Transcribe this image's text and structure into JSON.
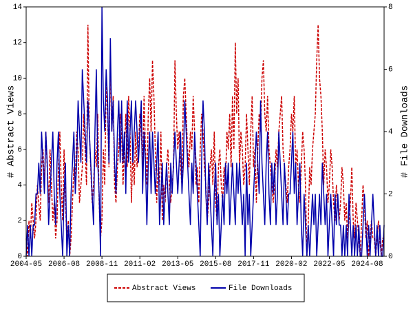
{
  "chart_data": {
    "type": "line",
    "x": [
      "2004-05",
      "2004-06",
      "2004-07",
      "2004-08",
      "2004-09",
      "2004-10",
      "2004-11",
      "2004-12",
      "2005-01",
      "2005-02",
      "2005-03",
      "2005-04",
      "2005-05",
      "2005-06",
      "2005-07",
      "2005-08",
      "2005-09",
      "2005-10",
      "2005-11",
      "2005-12",
      "2006-01",
      "2006-02",
      "2006-03",
      "2006-04",
      "2006-05",
      "2006-06",
      "2006-07",
      "2006-08",
      "2006-09",
      "2006-10",
      "2006-11",
      "2006-12",
      "2007-01",
      "2007-02",
      "2007-03",
      "2007-04",
      "2007-05",
      "2007-06",
      "2007-07",
      "2007-08",
      "2007-09",
      "2007-10",
      "2007-11",
      "2007-12",
      "2008-01",
      "2008-02",
      "2008-03",
      "2008-04",
      "2008-05",
      "2008-06",
      "2008-07",
      "2008-08",
      "2008-09",
      "2008-10",
      "2008-11",
      "2008-12",
      "2009-01",
      "2009-02",
      "2009-03",
      "2009-04",
      "2009-05",
      "2009-06",
      "2009-07",
      "2009-08",
      "2009-09",
      "2009-10",
      "2009-11",
      "2009-12",
      "2010-01",
      "2010-02",
      "2010-03",
      "2010-04",
      "2010-05",
      "2010-06",
      "2010-07",
      "2010-08",
      "2010-09",
      "2010-10",
      "2010-11",
      "2010-12",
      "2011-01",
      "2011-02",
      "2011-03",
      "2011-04",
      "2011-05",
      "2011-06",
      "2011-07",
      "2011-08",
      "2011-09",
      "2011-10",
      "2011-11",
      "2011-12",
      "2012-01",
      "2012-02",
      "2012-03",
      "2012-04",
      "2012-05",
      "2012-06",
      "2012-07",
      "2012-08",
      "2012-09",
      "2012-10",
      "2012-11",
      "2012-12",
      "2013-01",
      "2013-02",
      "2013-03",
      "2013-04",
      "2013-05",
      "2013-06",
      "2013-07",
      "2013-08",
      "2013-09",
      "2013-10",
      "2013-11",
      "2013-12",
      "2014-01",
      "2014-02",
      "2014-03",
      "2014-04",
      "2014-05",
      "2014-06",
      "2014-07",
      "2014-08",
      "2014-09",
      "2014-10",
      "2014-11",
      "2014-12",
      "2015-01",
      "2015-02",
      "2015-03",
      "2015-04",
      "2015-05",
      "2015-06",
      "2015-07",
      "2015-08",
      "2015-09",
      "2015-10",
      "2015-11",
      "2015-12",
      "2016-01",
      "2016-02",
      "2016-03",
      "2016-04",
      "2016-05",
      "2016-06",
      "2016-07",
      "2016-08",
      "2016-09",
      "2016-10",
      "2016-11",
      "2016-12",
      "2017-01",
      "2017-02",
      "2017-03",
      "2017-04",
      "2017-05",
      "2017-06",
      "2017-07",
      "2017-08",
      "2017-09",
      "2017-10",
      "2017-11",
      "2017-12",
      "2018-01",
      "2018-02",
      "2018-03",
      "2018-04",
      "2018-05",
      "2018-06",
      "2018-07",
      "2018-08",
      "2018-09",
      "2018-10",
      "2018-11",
      "2018-12",
      "2019-01",
      "2019-02",
      "2019-03",
      "2019-04",
      "2019-05",
      "2019-06",
      "2019-07",
      "2019-08",
      "2019-09",
      "2019-10",
      "2019-11",
      "2019-12",
      "2020-01",
      "2020-02",
      "2020-03",
      "2020-04",
      "2020-05",
      "2020-06",
      "2020-07",
      "2020-08",
      "2020-09",
      "2020-10",
      "2020-11",
      "2020-12",
      "2021-01",
      "2021-02",
      "2021-03",
      "2021-04",
      "2021-05",
      "2021-06",
      "2021-07",
      "2021-08",
      "2021-09",
      "2021-10",
      "2021-11",
      "2021-12",
      "2022-01",
      "2022-02",
      "2022-03",
      "2022-04",
      "2022-05",
      "2022-06",
      "2022-07",
      "2022-08",
      "2022-09",
      "2022-10",
      "2022-11",
      "2022-12",
      "2023-01",
      "2023-02",
      "2023-03",
      "2023-04",
      "2023-05",
      "2023-06",
      "2023-07",
      "2023-08",
      "2023-09",
      "2023-10",
      "2023-11",
      "2023-12",
      "2024-01",
      "2024-02",
      "2024-03",
      "2024-04",
      "2024-05",
      "2024-06",
      "2024-07",
      "2024-08",
      "2024-09",
      "2024-10",
      "2024-11",
      "2024-12",
      "2025-01",
      "2025-02",
      "2025-03",
      "2025-04",
      "2025-05",
      "2025-06",
      "2025-07",
      "2025-08"
    ],
    "xticks": [
      "2004-05",
      "2006-08",
      "2008-11",
      "2011-02",
      "2013-05",
      "2015-08",
      "2017-11",
      "2020-02",
      "2022-05",
      "2024-08"
    ],
    "ylabel": "# Abstract Views",
    "y2label": "# File Downloads",
    "ylim": [
      0,
      14
    ],
    "yticks": [
      0,
      2,
      4,
      6,
      8,
      10,
      12,
      14
    ],
    "y2lim": [
      0,
      8
    ],
    "y2ticks": [
      0,
      2,
      4,
      6,
      8
    ],
    "legend": "bottom",
    "series": [
      {
        "name": "Abstract Views",
        "color": "#cc0000",
        "dashed": true,
        "values": [
          1,
          0,
          2,
          1,
          3,
          2,
          1,
          2,
          4,
          3,
          2,
          5,
          6,
          4,
          7,
          5,
          3,
          6,
          4,
          2,
          3,
          1,
          2,
          5,
          7,
          4,
          2,
          6,
          3,
          1,
          2,
          0,
          1,
          3,
          5,
          4,
          7,
          6,
          3,
          4,
          5,
          8,
          6,
          4,
          13,
          7,
          5,
          3,
          4,
          6,
          5,
          8,
          3,
          1,
          2,
          6,
          4,
          10,
          8,
          5,
          11,
          7,
          9,
          4,
          3,
          5,
          6,
          8,
          7,
          4,
          6,
          8,
          5,
          9,
          7,
          3,
          6,
          4,
          7,
          5,
          6,
          8,
          7,
          5,
          9,
          6,
          4,
          8,
          10,
          7,
          11,
          9,
          6,
          3,
          5,
          4,
          7,
          2,
          4,
          3,
          5,
          6,
          4,
          3,
          4,
          5,
          11,
          8,
          6,
          7,
          5,
          4,
          9,
          10,
          8,
          6,
          5,
          7,
          6,
          9,
          7,
          4,
          5,
          3,
          6,
          8,
          7,
          5,
          4,
          2,
          3,
          5,
          6,
          4,
          7,
          3,
          2,
          5,
          6,
          4,
          3,
          5,
          4,
          7,
          6,
          8,
          5,
          9,
          6,
          12,
          8,
          10,
          5,
          7,
          6,
          4,
          5,
          8,
          6,
          4,
          7,
          9,
          5,
          6,
          3,
          6,
          8,
          7,
          10,
          11,
          8,
          7,
          9,
          6,
          5,
          4,
          3,
          4,
          6,
          5,
          7,
          8,
          9,
          6,
          5,
          4,
          3,
          5,
          6,
          8,
          7,
          9,
          5,
          6,
          4,
          3,
          5,
          7,
          6,
          4,
          0,
          2,
          5,
          4,
          6,
          7,
          8,
          11,
          13,
          10,
          9,
          7,
          4,
          6,
          5,
          3,
          4,
          6,
          5,
          3,
          2,
          4,
          3,
          2,
          3,
          5,
          4,
          2,
          3,
          1,
          2,
          3,
          5,
          2,
          1,
          3,
          2,
          1,
          0,
          2,
          4,
          3,
          1,
          2,
          0,
          1,
          2,
          1,
          1,
          0,
          1,
          2,
          1,
          0,
          1,
          1
        ]
      },
      {
        "name": "File Downloads",
        "color": "#0000aa",
        "axis": "y2",
        "values": [
          0,
          1,
          0,
          1,
          0,
          1,
          1,
          2,
          2,
          3,
          2,
          4,
          3,
          2,
          4,
          3,
          1,
          2,
          3,
          4,
          2,
          1,
          3,
          4,
          2,
          1,
          0,
          2,
          3,
          0,
          1,
          0,
          2,
          3,
          4,
          2,
          3,
          5,
          4,
          3,
          6,
          5,
          4,
          3,
          5,
          4,
          3,
          2,
          1,
          4,
          6,
          3,
          2,
          0,
          8,
          5,
          4,
          6,
          5,
          3,
          7,
          4,
          5,
          3,
          2,
          4,
          5,
          3,
          5,
          3,
          4,
          2,
          5,
          3,
          4,
          5,
          3,
          4,
          5,
          4,
          3,
          4,
          5,
          2,
          4,
          3,
          1,
          3,
          4,
          2,
          4,
          3,
          2,
          3,
          4,
          1,
          2,
          3,
          1,
          2,
          3,
          2,
          1,
          3,
          2,
          3,
          4,
          3,
          2,
          3,
          4,
          2,
          3,
          5,
          4,
          3,
          2,
          1,
          3,
          2,
          4,
          3,
          2,
          1,
          0,
          3,
          5,
          4,
          2,
          1,
          3,
          2,
          1,
          0,
          2,
          3,
          1,
          2,
          0,
          1,
          2,
          1,
          3,
          2,
          3,
          1,
          2,
          3,
          2,
          1,
          3,
          2,
          3,
          2,
          1,
          2,
          0,
          3,
          1,
          2,
          0,
          1,
          2,
          3,
          4,
          3,
          2,
          5,
          3,
          2,
          1,
          3,
          4,
          2,
          1,
          3,
          2,
          3,
          1,
          2,
          4,
          3,
          2,
          1,
          3,
          2,
          1,
          2,
          2,
          3,
          4,
          2,
          3,
          1,
          2,
          3,
          1,
          0,
          2,
          1,
          0,
          1,
          0,
          1,
          2,
          1,
          2,
          0,
          1,
          2,
          1,
          3,
          2,
          1,
          2,
          0,
          1,
          2,
          1,
          0,
          2,
          1,
          2,
          1,
          1,
          0,
          1,
          0,
          1,
          0,
          2,
          1,
          0,
          1,
          0,
          1,
          0,
          1,
          0,
          0,
          1,
          2,
          1,
          0,
          1,
          0,
          1,
          2,
          1,
          0,
          1,
          0,
          1,
          0,
          0,
          1
        ]
      }
    ]
  }
}
